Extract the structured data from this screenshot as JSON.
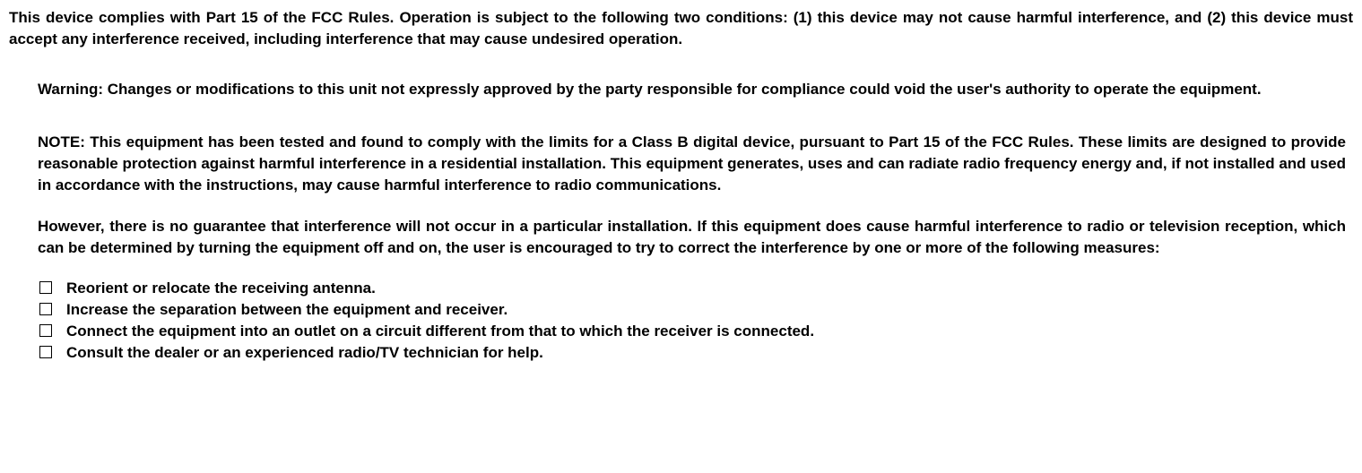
{
  "compliance_text": "This device complies with Part 15 of the FCC Rules.  Operation is subject to the following two conditions: (1) this device may not cause harmful interference, and (2) this device must accept any interference received, including interference that may cause undesired operation.",
  "warning_text": "Warning:  Changes or modifications to this unit not expressly approved by the party responsible for compliance could void the user's authority to operate the equipment.",
  "note_text": "NOTE:  This equipment has been tested and found to comply with the limits for a Class B digital device, pursuant to Part 15 of the FCC Rules.  These limits are designed to provide reasonable protection against harmful interference in a residential installation.  This equipment generates, uses and can radiate radio frequency energy and, if not installed and used in accordance with the instructions, may cause harmful interference to radio communications.",
  "however_text": "However, there is no guarantee that interference will not occur in a particular installation.  If this equipment does cause harmful interference to radio or television reception, which can be determined by turning the equipment off and on, the user is encouraged to try to correct the interference by one or more of the following measures:",
  "bullets": [
    "Reorient or relocate the receiving antenna.",
    "Increase the separation between the equipment and receiver.",
    "Connect the equipment into an outlet on a circuit different from that to which the receiver is connected.",
    "Consult the dealer or an experienced radio/TV technician for help."
  ]
}
